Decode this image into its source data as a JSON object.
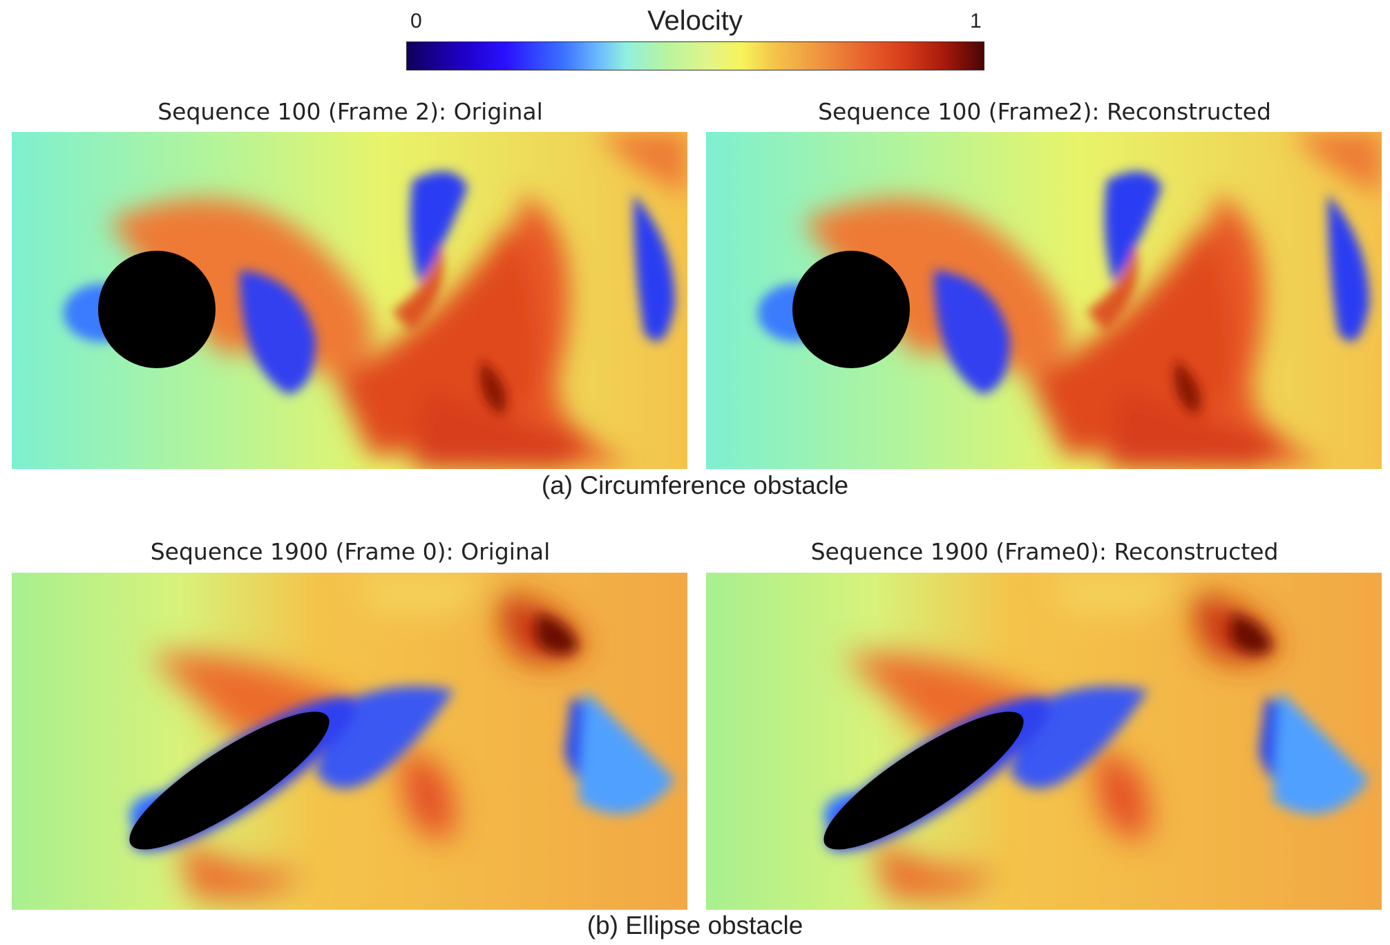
{
  "colorbar": {
    "title": "Velocity",
    "min_label": "0",
    "max_label": "1",
    "colormap": "jet"
  },
  "figure_a": {
    "left_title": "Sequence 100 (Frame 2): Original",
    "right_title": "Sequence 100 (Frame2): Reconstructed",
    "caption": "(a) Circumference obstacle"
  },
  "figure_b": {
    "left_title": "Sequence 1900 (Frame 0): Original",
    "right_title": "Sequence 1900 (Frame0): Reconstructed",
    "caption": "(b) Ellipse obstacle"
  },
  "colors": {
    "obstacle": "#000000",
    "freestream_a": "#7ef0d0",
    "freestream_b": "#a8f090"
  }
}
